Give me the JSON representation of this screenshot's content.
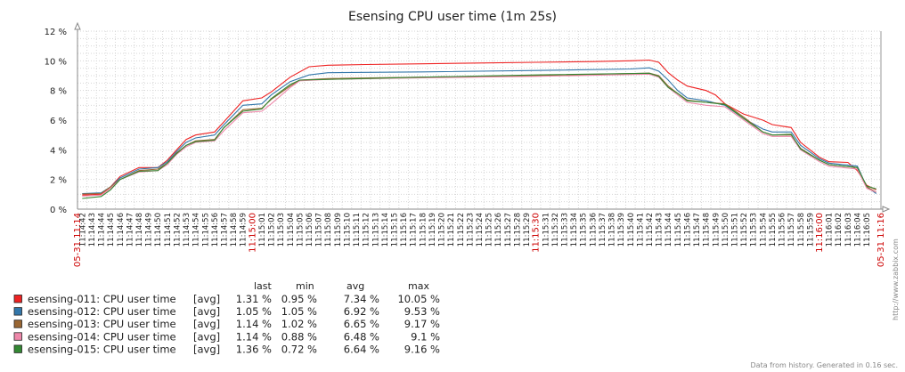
{
  "chart_data": {
    "type": "line",
    "title": "Esensing CPU user time (1m 25s)",
    "y_ticks": [
      "0 %",
      "2 %",
      "4 %",
      "6 %",
      "8 %",
      "10 %",
      "12 %"
    ],
    "ylim": [
      0,
      12
    ],
    "x_labels": [
      "11:14:42",
      "11:14:43",
      "11:14:44",
      "11:14:45",
      "11:14:46",
      "11:14:47",
      "11:14:48",
      "11:14:49",
      "11:14:50",
      "11:14:51",
      "11:14:52",
      "11:14:53",
      "11:14:54",
      "11:14:55",
      "11:14:56",
      "11:14:57",
      "11:14:58",
      "11:14:59",
      "11:15:00",
      "11:15:01",
      "11:15:02",
      "11:15:03",
      "11:15:04",
      "11:15:05",
      "11:15:06",
      "11:15:07",
      "11:15:08",
      "11:15:09",
      "11:15:10",
      "11:15:11",
      "11:15:12",
      "11:15:13",
      "11:15:14",
      "11:15:15",
      "11:15:16",
      "11:15:17",
      "11:15:18",
      "11:15:19",
      "11:15:20",
      "11:15:21",
      "11:15:22",
      "11:15:23",
      "11:15:24",
      "11:15:25",
      "11:15:26",
      "11:15:27",
      "11:15:28",
      "11:15:29",
      "11:15:30",
      "11:15:31",
      "11:15:32",
      "11:15:33",
      "11:15:34",
      "11:15:35",
      "11:15:36",
      "11:15:37",
      "11:15:38",
      "11:15:39",
      "11:15:40",
      "11:15:41",
      "11:15:42",
      "11:15:43",
      "11:15:44",
      "11:15:45",
      "11:15:46",
      "11:15:47",
      "11:15:48",
      "11:15:49",
      "11:15:50",
      "11:15:51",
      "11:15:52",
      "11:15:53",
      "11:15:54",
      "11:15:55",
      "11:15:56",
      "11:15:57",
      "11:15:58",
      "11:15:59",
      "11:16:00",
      "11:16:01",
      "11:16:02",
      "11:16:03",
      "11:16:04",
      "11:16:05"
    ],
    "major_labels": [
      "11:15:00",
      "11:15:30",
      "11:16:00"
    ],
    "start_label": "05-31 11:14",
    "end_label": "05-31 11:16",
    "legend_headers": [
      "last",
      "min",
      "avg",
      "max"
    ],
    "series": [
      {
        "name": "esensing-011: CPU user time",
        "func": "[avg]",
        "color": "#ee2222",
        "last": "1.31 %",
        "min": "0.95 %",
        "avg": "7.34 %",
        "max": "10.05 %",
        "points": [
          [
            0,
            0.95
          ],
          [
            2,
            1.0
          ],
          [
            3,
            1.5
          ],
          [
            4,
            2.2
          ],
          [
            6,
            2.8
          ],
          [
            8,
            2.8
          ],
          [
            9,
            3.3
          ],
          [
            10,
            4.0
          ],
          [
            11,
            4.7
          ],
          [
            12,
            5.0
          ],
          [
            14,
            5.2
          ],
          [
            15,
            5.9
          ],
          [
            17,
            7.3
          ],
          [
            19,
            7.5
          ],
          [
            20,
            7.9
          ],
          [
            22,
            8.9
          ],
          [
            24,
            9.6
          ],
          [
            26,
            9.7
          ],
          [
            30,
            9.75
          ],
          [
            36,
            9.8
          ],
          [
            42,
            9.85
          ],
          [
            48,
            9.9
          ],
          [
            54,
            9.95
          ],
          [
            58,
            10.0
          ],
          [
            60,
            10.05
          ],
          [
            61,
            9.9
          ],
          [
            62,
            9.2
          ],
          [
            63,
            8.7
          ],
          [
            64,
            8.3
          ],
          [
            66,
            8.0
          ],
          [
            67,
            7.7
          ],
          [
            68,
            7.1
          ],
          [
            70,
            6.4
          ],
          [
            72,
            6.0
          ],
          [
            73,
            5.7
          ],
          [
            74,
            5.6
          ],
          [
            75,
            5.5
          ],
          [
            76,
            4.5
          ],
          [
            78,
            3.5
          ],
          [
            79,
            3.2
          ],
          [
            81,
            3.15
          ],
          [
            82,
            2.6
          ],
          [
            83,
            1.6
          ],
          [
            84,
            1.31
          ]
        ]
      },
      {
        "name": "esensing-012: CPU user time",
        "func": "[avg]",
        "color": "#3377aa",
        "last": "1.05 %",
        "min": "1.05 %",
        "avg": "6.92 %",
        "max": "9.53 %",
        "points": [
          [
            0,
            1.05
          ],
          [
            2,
            1.1
          ],
          [
            3,
            1.5
          ],
          [
            4,
            2.1
          ],
          [
            6,
            2.7
          ],
          [
            8,
            2.8
          ],
          [
            9,
            3.2
          ],
          [
            10,
            3.9
          ],
          [
            11,
            4.5
          ],
          [
            12,
            4.8
          ],
          [
            14,
            5.0
          ],
          [
            15,
            5.7
          ],
          [
            17,
            7.0
          ],
          [
            19,
            7.1
          ],
          [
            20,
            7.7
          ],
          [
            22,
            8.6
          ],
          [
            24,
            9.05
          ],
          [
            26,
            9.2
          ],
          [
            36,
            9.25
          ],
          [
            48,
            9.35
          ],
          [
            58,
            9.45
          ],
          [
            60,
            9.53
          ],
          [
            61,
            9.3
          ],
          [
            62,
            8.7
          ],
          [
            63,
            8.0
          ],
          [
            64,
            7.5
          ],
          [
            66,
            7.3
          ],
          [
            68,
            7.0
          ],
          [
            70,
            6.1
          ],
          [
            72,
            5.4
          ],
          [
            73,
            5.2
          ],
          [
            75,
            5.2
          ],
          [
            76,
            4.3
          ],
          [
            78,
            3.4
          ],
          [
            79,
            3.1
          ],
          [
            82,
            2.9
          ],
          [
            83,
            1.5
          ],
          [
            84,
            1.05
          ]
        ]
      },
      {
        "name": "esensing-013: CPU user time",
        "func": "[avg]",
        "color": "#996633",
        "last": "1.14 %",
        "min": "1.02 %",
        "avg": "6.65 %",
        "max": "9.17 %",
        "points": [
          [
            0,
            1.02
          ],
          [
            2,
            1.05
          ],
          [
            3,
            1.5
          ],
          [
            4,
            2.0
          ],
          [
            6,
            2.6
          ],
          [
            8,
            2.7
          ],
          [
            9,
            3.1
          ],
          [
            10,
            3.8
          ],
          [
            11,
            4.3
          ],
          [
            12,
            4.6
          ],
          [
            14,
            4.7
          ],
          [
            15,
            5.5
          ],
          [
            17,
            6.7
          ],
          [
            19,
            6.8
          ],
          [
            20,
            7.4
          ],
          [
            22,
            8.3
          ],
          [
            23,
            8.7
          ],
          [
            26,
            8.8
          ],
          [
            36,
            8.9
          ],
          [
            48,
            9.0
          ],
          [
            60,
            9.17
          ],
          [
            61,
            9.0
          ],
          [
            62,
            8.3
          ],
          [
            63,
            7.8
          ],
          [
            64,
            7.35
          ],
          [
            66,
            7.2
          ],
          [
            68,
            7.1
          ],
          [
            70,
            6.2
          ],
          [
            72,
            5.2
          ],
          [
            73,
            5.0
          ],
          [
            75,
            5.0
          ],
          [
            76,
            4.1
          ],
          [
            78,
            3.3
          ],
          [
            79,
            3.0
          ],
          [
            82,
            2.8
          ],
          [
            83,
            1.5
          ],
          [
            84,
            1.14
          ]
        ]
      },
      {
        "name": "esensing-014: CPU user time",
        "func": "[avg]",
        "color": "#ee88aa",
        "last": "1.14 %",
        "min": "0.88 %",
        "avg": "6.48 %",
        "max": "9.1 %",
        "points": [
          [
            0,
            0.88
          ],
          [
            2,
            0.95
          ],
          [
            3,
            1.4
          ],
          [
            4,
            2.0
          ],
          [
            6,
            2.5
          ],
          [
            8,
            2.6
          ],
          [
            9,
            3.0
          ],
          [
            10,
            3.7
          ],
          [
            11,
            4.2
          ],
          [
            12,
            4.5
          ],
          [
            14,
            4.6
          ],
          [
            15,
            5.3
          ],
          [
            17,
            6.5
          ],
          [
            19,
            6.6
          ],
          [
            20,
            7.1
          ],
          [
            22,
            8.2
          ],
          [
            23,
            8.65
          ],
          [
            26,
            8.75
          ],
          [
            36,
            8.85
          ],
          [
            48,
            8.95
          ],
          [
            60,
            9.1
          ],
          [
            61,
            8.9
          ],
          [
            62,
            8.2
          ],
          [
            63,
            7.7
          ],
          [
            64,
            7.2
          ],
          [
            66,
            7.0
          ],
          [
            68,
            6.9
          ],
          [
            70,
            6.0
          ],
          [
            72,
            5.1
          ],
          [
            73,
            4.9
          ],
          [
            75,
            4.9
          ],
          [
            76,
            4.0
          ],
          [
            78,
            3.2
          ],
          [
            79,
            2.9
          ],
          [
            82,
            2.7
          ],
          [
            83,
            1.4
          ],
          [
            84,
            1.14
          ]
        ]
      },
      {
        "name": "esensing-015: CPU user time",
        "func": "[avg]",
        "color": "#338833",
        "last": "1.36 %",
        "min": "0.72 %",
        "avg": "6.64 %",
        "max": "9.16 %",
        "points": [
          [
            0,
            0.72
          ],
          [
            2,
            0.85
          ],
          [
            3,
            1.3
          ],
          [
            4,
            2.0
          ],
          [
            6,
            2.55
          ],
          [
            8,
            2.6
          ],
          [
            9,
            3.1
          ],
          [
            10,
            3.75
          ],
          [
            11,
            4.3
          ],
          [
            12,
            4.55
          ],
          [
            14,
            4.65
          ],
          [
            15,
            5.5
          ],
          [
            17,
            6.6
          ],
          [
            19,
            6.75
          ],
          [
            20,
            7.45
          ],
          [
            22,
            8.4
          ],
          [
            23,
            8.7
          ],
          [
            26,
            8.75
          ],
          [
            36,
            8.9
          ],
          [
            48,
            9.05
          ],
          [
            60,
            9.16
          ],
          [
            61,
            8.95
          ],
          [
            62,
            8.2
          ],
          [
            63,
            7.8
          ],
          [
            64,
            7.3
          ],
          [
            66,
            7.2
          ],
          [
            68,
            7.05
          ],
          [
            70,
            6.1
          ],
          [
            72,
            5.2
          ],
          [
            73,
            5.0
          ],
          [
            75,
            5.05
          ],
          [
            76,
            4.05
          ],
          [
            78,
            3.3
          ],
          [
            79,
            3.0
          ],
          [
            82,
            2.8
          ],
          [
            83,
            1.55
          ],
          [
            84,
            1.36
          ]
        ]
      }
    ],
    "grid": true
  },
  "side_text": "http://www.zabbix.com",
  "footer_text": "Data from history. Generated in 0.16 sec."
}
